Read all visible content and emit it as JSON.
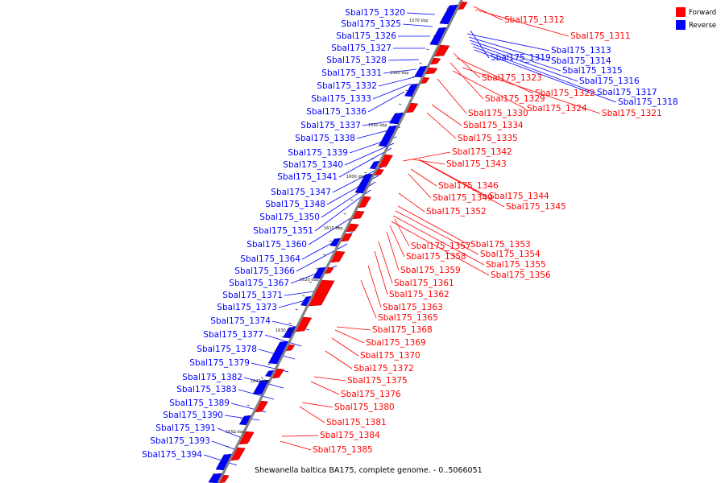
{
  "colors": {
    "forward": "#ff0000",
    "reverse": "#0000ff",
    "axis": "#808080"
  },
  "legend": {
    "forward": "Forward",
    "reverse": "Reverse"
  },
  "caption": "Shewanella baltica BA175, complete genome. - 0..5066051",
  "ticks": [
    "1570 kbp",
    "1580 kbp",
    "1590 kbp",
    "1600 kbp",
    "1610 kbp",
    "1620 kbp",
    "1630 kbp",
    "1640 kbp",
    "1650 kbp"
  ],
  "reverse_genes": [
    "Sbal175_1320",
    "Sbal175_1325",
    "Sbal175_1326",
    "Sbal175_1327",
    "Sbal175_1328",
    "Sbal175_1331",
    "Sbal175_1332",
    "Sbal175_1333",
    "Sbal175_1336",
    "Sbal175_1337",
    "Sbal175_1338",
    "Sbal175_1339",
    "Sbal175_1340",
    "Sbal175_1341",
    "Sbal175_1347",
    "Sbal175_1348",
    "Sbal175_1350",
    "Sbal175_1351",
    "Sbal175_1360",
    "Sbal175_1364",
    "Sbal175_1366",
    "Sbal175_1367",
    "Sbal175_1371",
    "Sbal175_1373",
    "Sbal175_1374",
    "Sbal175_1377",
    "Sbal175_1378",
    "Sbal175_1379",
    "Sbal175_1382",
    "Sbal175_1383",
    "Sbal175_1389",
    "Sbal175_1390",
    "Sbal175_1391",
    "Sbal175_1393",
    "Sbal175_1394"
  ],
  "reverse_genes_right": [
    "Sbal175_1313",
    "Sbal175_1314",
    "Sbal175_1315",
    "Sbal175_1316",
    "Sbal175_1317",
    "Sbal175_1318",
    "Sbal175_1319"
  ],
  "forward_genes": [
    "Sbal175_1312",
    "Sbal175_1311",
    "Sbal175_1323",
    "Sbal175_1322",
    "Sbal175_1329",
    "Sbal175_1324",
    "Sbal175_1321",
    "Sbal175_1330",
    "Sbal175_1334",
    "Sbal175_1335",
    "Sbal175_1342",
    "Sbal175_1343",
    "Sbal175_1346",
    "Sbal175_1349",
    "Sbal175_1344",
    "Sbal175_1345",
    "Sbal175_1352",
    "Sbal175_1353",
    "Sbal175_1357",
    "Sbal175_1354",
    "Sbal175_1358",
    "Sbal175_1355",
    "Sbal175_1356",
    "Sbal175_1359",
    "Sbal175_1361",
    "Sbal175_1362",
    "Sbal175_1363",
    "Sbal175_1365",
    "Sbal175_1368",
    "Sbal175_1369",
    "Sbal175_1370",
    "Sbal175_1372",
    "Sbal175_1375",
    "Sbal175_1376",
    "Sbal175_1380",
    "Sbal175_1381",
    "Sbal175_1384",
    "Sbal175_1385"
  ]
}
